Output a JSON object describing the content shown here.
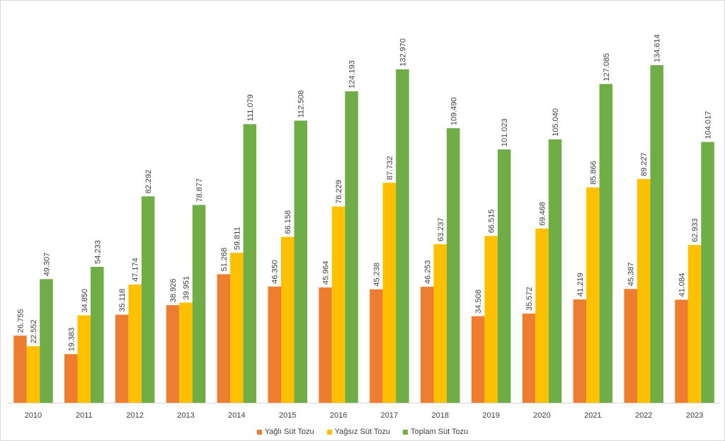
{
  "chart_data": {
    "type": "bar",
    "title": "",
    "xlabel": "",
    "ylabel": "",
    "ylim": [
      0,
      140
    ],
    "grid": false,
    "legend_position": "bottom",
    "categories": [
      "2010",
      "2011",
      "2012",
      "2013",
      "2014",
      "2015",
      "2016",
      "2017",
      "2018",
      "2019",
      "2020",
      "2021",
      "2022",
      "2023"
    ],
    "series": [
      {
        "name": "Yağlı Süt Tozu",
        "color": "#ed7d31",
        "values": [
          26.755,
          19.383,
          35.118,
          38.926,
          51.268,
          46.35,
          45.964,
          45.238,
          46.253,
          34.508,
          35.572,
          41.219,
          45.387,
          41.084
        ],
        "labels": [
          "26.755",
          "19.383",
          "35.118",
          "38.926",
          "51.268",
          "46.350",
          "45.964",
          "45.238",
          "46.253",
          "34.508",
          "35.572",
          "41.219",
          "45.387",
          "41.084"
        ]
      },
      {
        "name": "Yağsız Süt Tozu",
        "color": "#ffc000",
        "values": [
          22.552,
          34.85,
          47.174,
          39.951,
          59.811,
          66.158,
          78.229,
          87.732,
          63.237,
          66.515,
          69.468,
          85.866,
          89.227,
          62.933
        ],
        "labels": [
          "22.552",
          "34.850",
          "47.174",
          "39.951",
          "59.811",
          "66.158",
          "78.229",
          "87.732",
          "63.237",
          "66.515",
          "69.468",
          "85.866",
          "89.227",
          "62.933"
        ]
      },
      {
        "name": "Toplam Süt Tozu",
        "color": "#70ad47",
        "values": [
          49.307,
          54.233,
          82.292,
          78.877,
          111.079,
          112.508,
          124.193,
          132.97,
          109.49,
          101.023,
          105.04,
          127.085,
          134.614,
          104.017
        ],
        "labels": [
          "49.307",
          "54.233",
          "82.292",
          "78.877",
          "111.079",
          "112.508",
          "124.193",
          "132.970",
          "109.490",
          "101.023",
          "105.040",
          "127.085",
          "134.614",
          "104.017"
        ]
      }
    ]
  }
}
